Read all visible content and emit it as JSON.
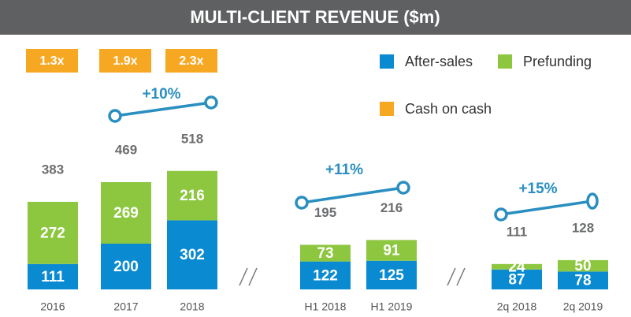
{
  "chart_data": {
    "type": "bar",
    "stacked": true,
    "title": "MULTI-CLIENT REVENUE ($m)",
    "categories": [
      "2016",
      "2017",
      "2018",
      "H1 2018",
      "H1 2019",
      "2q 2018",
      "2q 2019"
    ],
    "series": [
      {
        "name": "After-sales",
        "color": "#0a8ad0",
        "values": [
          111,
          200,
          302,
          122,
          125,
          87,
          78
        ]
      },
      {
        "name": "Prefunding",
        "color": "#8dc63f",
        "values": [
          272,
          269,
          216,
          73,
          91,
          24,
          50
        ]
      }
    ],
    "totals": [
      383,
      469,
      518,
      195,
      216,
      111,
      128
    ],
    "ylim": [
      0,
      1000
    ],
    "cash_on_cash": {
      "name": "Cash on cash",
      "color": "#f7a823",
      "values": [
        1.3,
        1.9,
        2.3
      ],
      "value_labels": [
        "1.3x",
        "1.9x",
        "2.3x"
      ]
    },
    "growth": [
      "+10%",
      "+11%",
      "+15%"
    ]
  }
}
